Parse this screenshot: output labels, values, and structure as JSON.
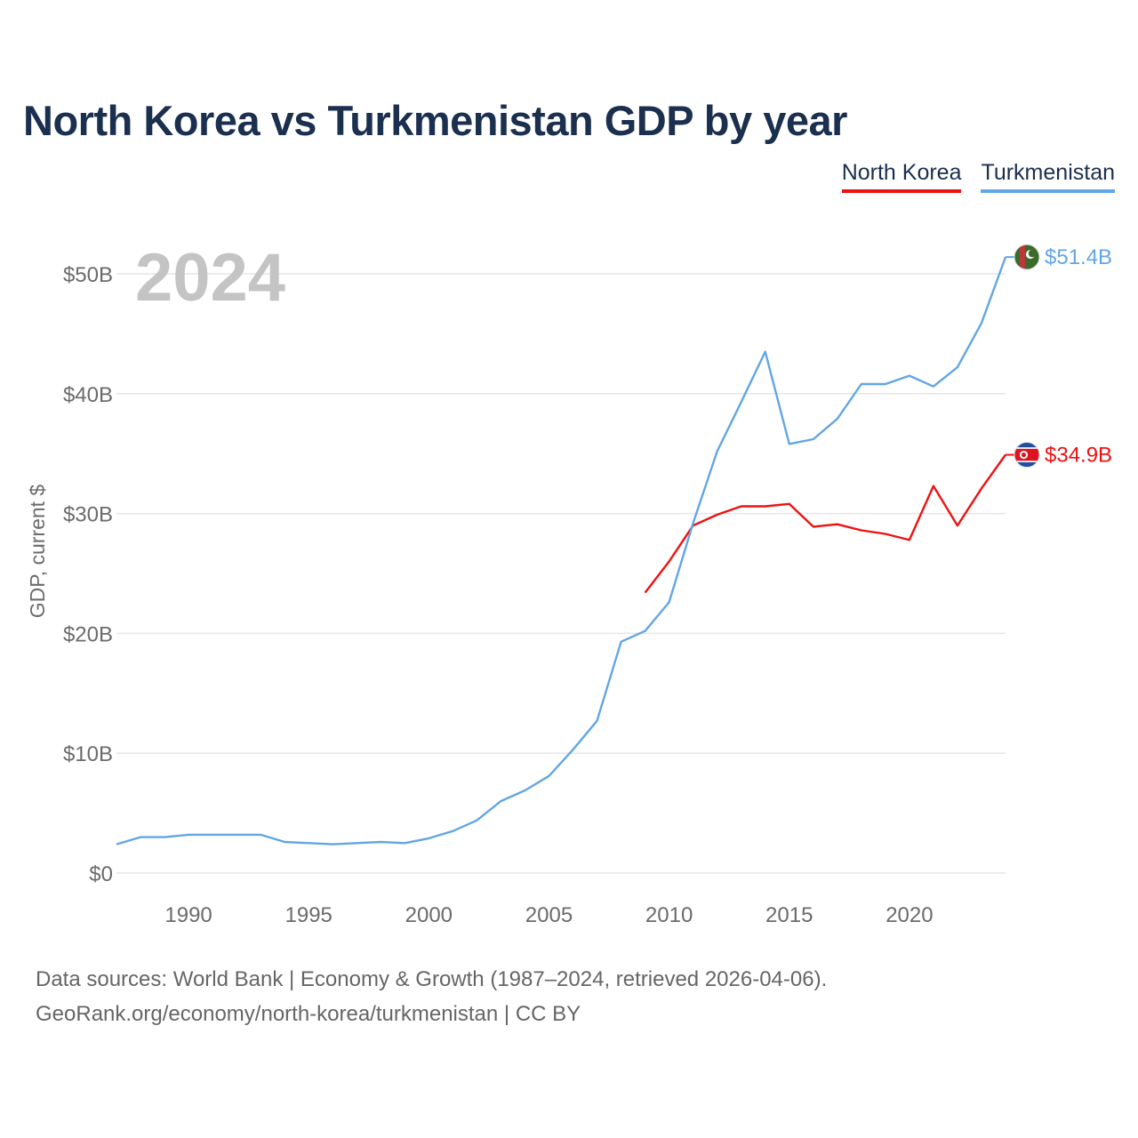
{
  "title": "North Korea vs Turkmenistan GDP by year",
  "legend": [
    "North Korea",
    "Turkmenistan"
  ],
  "year_label": "2024",
  "source_line1": "Data sources: World Bank | Economy & Growth (1987–2024, retrieved 2026-04-06).",
  "source_line2": "GeoRank.org/economy/north-korea/turkmenistan | CC BY",
  "colors": {
    "north_korea": "#ee1111",
    "turkmenistan": "#62a6e3",
    "title": "#1b2f4e"
  },
  "chart_data": {
    "type": "line",
    "title": "North Korea vs Turkmenistan GDP by year",
    "xlabel": "",
    "ylabel": "GDP, current $",
    "xlim": [
      1987,
      2024
    ],
    "ylim": [
      0,
      52
    ],
    "x_ticks": [
      1990,
      1995,
      2000,
      2005,
      2010,
      2015,
      2020
    ],
    "y_ticks": [
      0,
      10,
      20,
      30,
      40,
      50
    ],
    "y_tick_labels": [
      "$0",
      "$10B",
      "$20B",
      "$30B",
      "$40B",
      "$50B"
    ],
    "grid": true,
    "legend_position": "top-right",
    "series": [
      {
        "name": "North Korea",
        "color": "#ee1111",
        "end_label": "$34.9B",
        "flag_icon": "north-korea-flag-icon",
        "x": [
          2009,
          2010,
          2011,
          2012,
          2013,
          2014,
          2015,
          2016,
          2017,
          2018,
          2019,
          2020,
          2021,
          2022,
          2023,
          2024
        ],
        "values": [
          23.4,
          26.0,
          29.0,
          29.9,
          30.6,
          30.6,
          30.8,
          28.9,
          29.1,
          28.6,
          28.3,
          27.8,
          32.3,
          29.0,
          32.1,
          34.9
        ]
      },
      {
        "name": "Turkmenistan",
        "color": "#62a6e3",
        "end_label": "$51.4B",
        "flag_icon": "turkmenistan-flag-icon",
        "x": [
          1987,
          1988,
          1989,
          1990,
          1991,
          1992,
          1993,
          1994,
          1995,
          1996,
          1997,
          1998,
          1999,
          2000,
          2001,
          2002,
          2003,
          2004,
          2005,
          2006,
          2007,
          2008,
          2009,
          2010,
          2011,
          2012,
          2013,
          2014,
          2015,
          2016,
          2017,
          2018,
          2019,
          2020,
          2021,
          2022,
          2023,
          2024
        ],
        "values": [
          2.4,
          3.0,
          3.0,
          3.2,
          3.2,
          3.2,
          3.2,
          2.6,
          2.5,
          2.4,
          2.5,
          2.6,
          2.5,
          2.9,
          3.5,
          4.4,
          6.0,
          6.9,
          8.1,
          10.3,
          12.7,
          19.3,
          20.2,
          22.6,
          29.2,
          35.2,
          39.3,
          43.5,
          35.8,
          36.2,
          37.9,
          40.8,
          40.8,
          41.5,
          40.6,
          42.2,
          45.9,
          51.4
        ]
      }
    ]
  }
}
